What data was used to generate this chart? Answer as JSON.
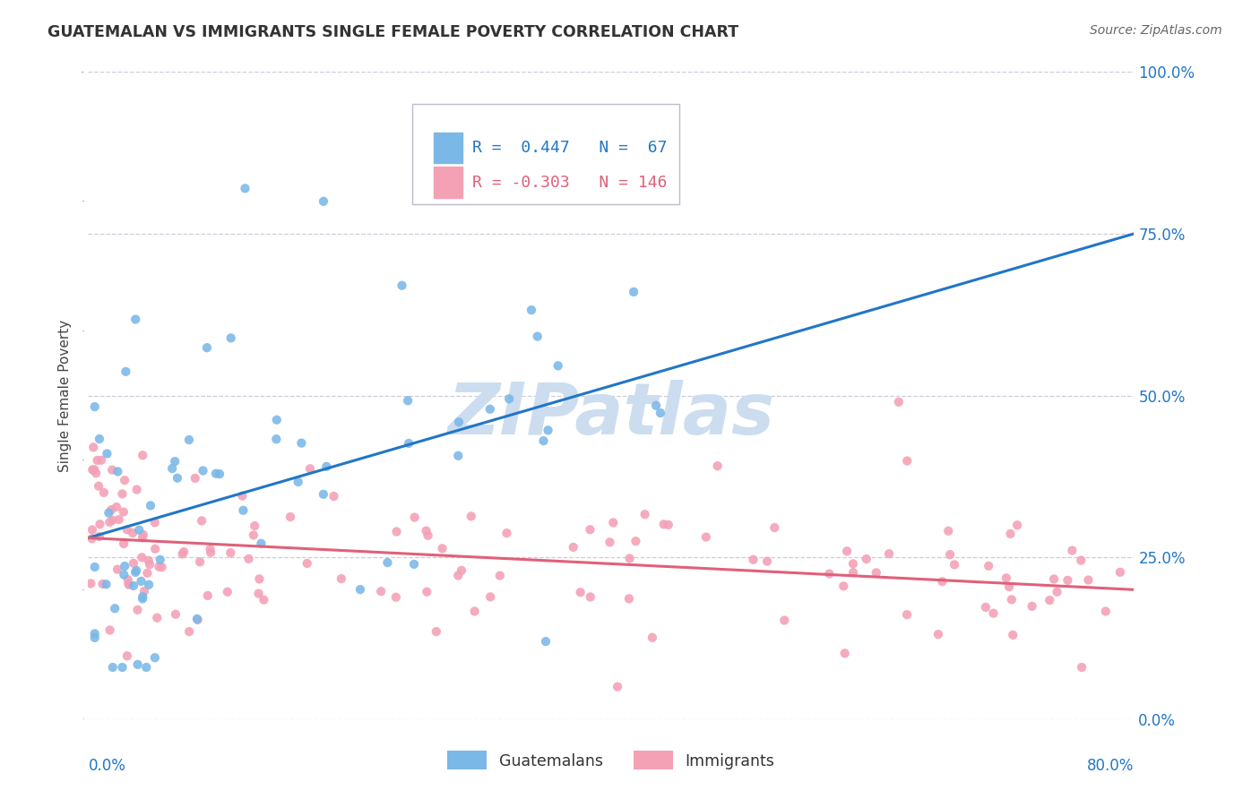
{
  "title": "GUATEMALAN VS IMMIGRANTS SINGLE FEMALE POVERTY CORRELATION CHART",
  "source": "Source: ZipAtlas.com",
  "ylabel": "Single Female Poverty",
  "ytick_values": [
    0,
    25,
    50,
    75,
    100
  ],
  "xlim": [
    0.0,
    80.0
  ],
  "ylim": [
    0.0,
    100.0
  ],
  "guatemalan_color": "#7ab8e8",
  "immigrant_color": "#f4a0b5",
  "guatemalan_line_color": "#2176c7",
  "immigrant_line_color": "#e0607a",
  "background_color": "#ffffff",
  "grid_color": "#ccccdd",
  "watermark_color": "#ccddf0",
  "r_guatemalan": 0.447,
  "n_guatemalan": 67,
  "r_immigrant": -0.303,
  "n_immigrant": 146,
  "guat_line_x0": 0.0,
  "guat_line_y0": 28.0,
  "guat_line_x1": 80.0,
  "guat_line_y1": 75.0,
  "imm_line_x0": 0.0,
  "imm_line_y0": 28.0,
  "imm_line_x1": 80.0,
  "imm_line_y1": 20.0
}
